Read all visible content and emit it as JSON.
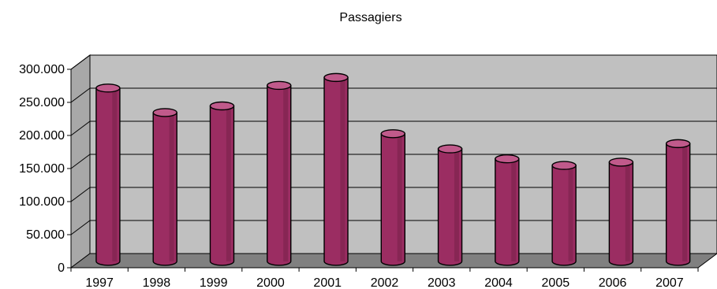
{
  "chart_data": {
    "type": "bar",
    "title": "Passagiers",
    "xlabel": "",
    "ylabel": "",
    "categories": [
      "1997",
      "1998",
      "1999",
      "2000",
      "2001",
      "2002",
      "2003",
      "2004",
      "2005",
      "2006",
      "2007"
    ],
    "values": [
      262000,
      225000,
      235000,
      266000,
      278000,
      193000,
      170000,
      155000,
      145000,
      150000,
      178000
    ],
    "ylim": [
      0,
      300000
    ],
    "yticks": [
      "0",
      "50.000",
      "100.000",
      "150.000",
      "200.000",
      "250.000",
      "300.000"
    ],
    "grid": true,
    "colors": {
      "bar": "#9b2d62",
      "bar_dark": "#6e1f45",
      "bar_light": "#c05a8b",
      "wall": "#c0c0c0",
      "floor": "#808080"
    }
  }
}
